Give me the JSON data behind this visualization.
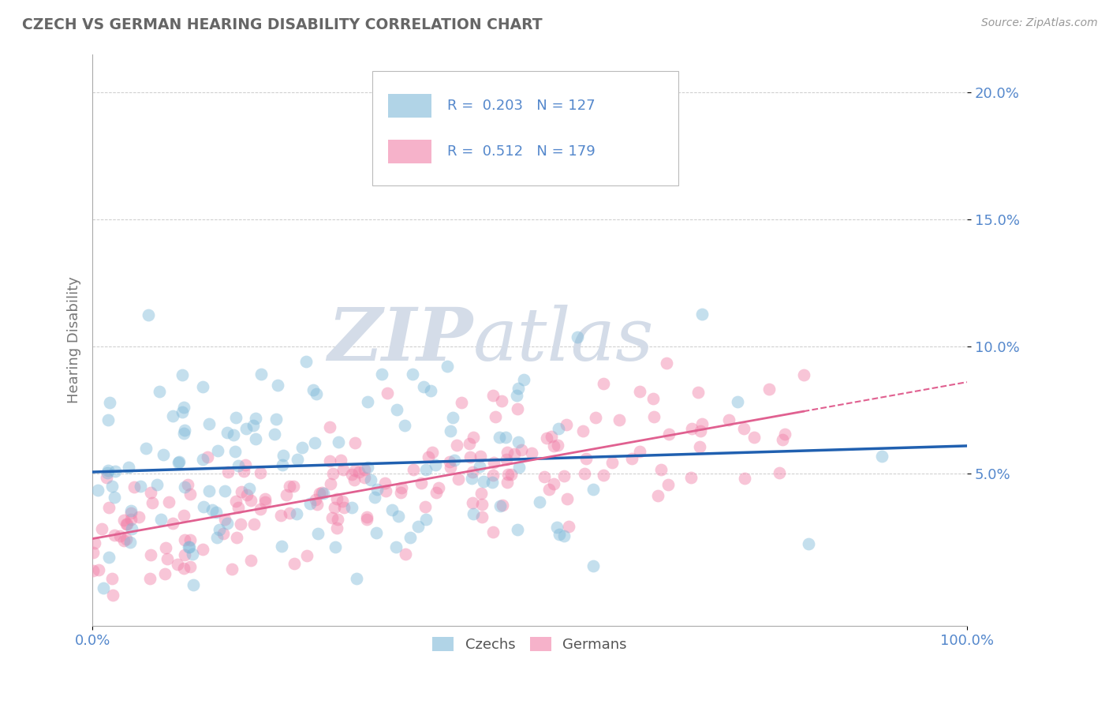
{
  "title": "CZECH VS GERMAN HEARING DISABILITY CORRELATION CHART",
  "source": "Source: ZipAtlas.com",
  "ylabel": "Hearing Disability",
  "xlabel": "",
  "xlim": [
    0,
    1.0
  ],
  "ylim": [
    -0.01,
    0.215
  ],
  "yticks": [
    0.05,
    0.1,
    0.15,
    0.2
  ],
  "ytick_labels": [
    "5.0%",
    "10.0%",
    "15.0%",
    "20.0%"
  ],
  "xticks": [
    0.0,
    1.0
  ],
  "xtick_labels": [
    "0.0%",
    "100.0%"
  ],
  "czech_R": 0.203,
  "czech_N": 127,
  "german_R": 0.512,
  "german_N": 179,
  "czech_color": "#7db8d8",
  "german_color": "#f080a8",
  "czech_line_color": "#2060b0",
  "german_line_color": "#e06090",
  "background_color": "#ffffff",
  "grid_color": "#cccccc",
  "watermark_zip": "ZIP",
  "watermark_atlas": "atlas",
  "watermark_color": "#d4dce8",
  "title_color": "#666666",
  "axis_label_color": "#5588cc",
  "source_color": "#999999"
}
